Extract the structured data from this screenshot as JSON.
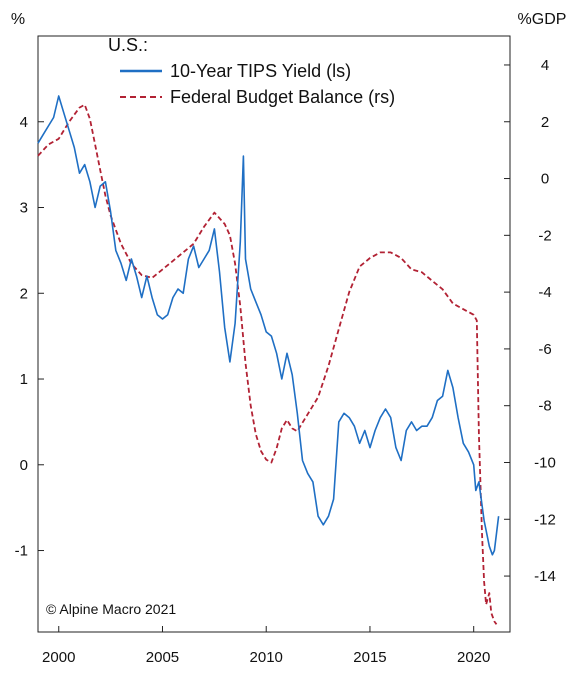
{
  "chart_data": {
    "type": "line",
    "title": "",
    "left_axis_unit": "%",
    "right_axis_unit": "%GDP",
    "legend": {
      "heading": "U.S.:",
      "placement": "top-left"
    },
    "credit": "© Alpine Macro 2021",
    "x_axis": {
      "range": [
        1999.0,
        2021.75
      ],
      "ticks": [
        2000,
        2005,
        2010,
        2015,
        2020
      ],
      "tick_labels": [
        "2000",
        "2005",
        "2010",
        "2015",
        "2020"
      ]
    },
    "left_axis": {
      "range": [
        -1.95,
        5.0
      ],
      "ticks": [
        -1,
        0,
        1,
        2,
        3,
        4
      ],
      "tick_labels": [
        "-1",
        "0",
        "1",
        "2",
        "3",
        "4"
      ]
    },
    "right_axis": {
      "range": [
        -15.97,
        5.02
      ],
      "ticks": [
        -14,
        -12,
        -10,
        -8,
        -6,
        -4,
        -2,
        0,
        2,
        4
      ],
      "tick_labels": [
        "-14",
        "-12",
        "-10",
        "-8",
        "-6",
        "-4",
        "-2",
        "0",
        "2",
        "4"
      ]
    },
    "grid": false,
    "series": [
      {
        "name": "10-Year TIPS Yield (ls)",
        "axis": "left",
        "color": "#1f6fc4",
        "style": "solid",
        "points": [
          [
            1999.0,
            3.75
          ],
          [
            1999.25,
            3.85
          ],
          [
            1999.5,
            3.95
          ],
          [
            1999.75,
            4.05
          ],
          [
            2000.0,
            4.3
          ],
          [
            2000.25,
            4.1
          ],
          [
            2000.5,
            3.9
          ],
          [
            2000.75,
            3.7
          ],
          [
            2001.0,
            3.4
          ],
          [
            2001.25,
            3.5
          ],
          [
            2001.5,
            3.3
          ],
          [
            2001.75,
            3.0
          ],
          [
            2002.0,
            3.25
          ],
          [
            2002.25,
            3.3
          ],
          [
            2002.5,
            2.95
          ],
          [
            2002.75,
            2.5
          ],
          [
            2003.0,
            2.35
          ],
          [
            2003.25,
            2.15
          ],
          [
            2003.5,
            2.4
          ],
          [
            2003.75,
            2.2
          ],
          [
            2004.0,
            1.95
          ],
          [
            2004.25,
            2.2
          ],
          [
            2004.5,
            1.95
          ],
          [
            2004.75,
            1.75
          ],
          [
            2005.0,
            1.7
          ],
          [
            2005.25,
            1.75
          ],
          [
            2005.5,
            1.95
          ],
          [
            2005.75,
            2.05
          ],
          [
            2006.0,
            2.0
          ],
          [
            2006.25,
            2.4
          ],
          [
            2006.5,
            2.55
          ],
          [
            2006.75,
            2.3
          ],
          [
            2007.0,
            2.4
          ],
          [
            2007.25,
            2.5
          ],
          [
            2007.5,
            2.75
          ],
          [
            2007.75,
            2.25
          ],
          [
            2008.0,
            1.6
          ],
          [
            2008.25,
            1.2
          ],
          [
            2008.5,
            1.65
          ],
          [
            2008.75,
            2.6
          ],
          [
            2008.9,
            3.6
          ],
          [
            2009.0,
            2.4
          ],
          [
            2009.25,
            2.05
          ],
          [
            2009.5,
            1.9
          ],
          [
            2009.75,
            1.75
          ],
          [
            2010.0,
            1.55
          ],
          [
            2010.25,
            1.5
          ],
          [
            2010.5,
            1.3
          ],
          [
            2010.75,
            1.0
          ],
          [
            2011.0,
            1.3
          ],
          [
            2011.25,
            1.05
          ],
          [
            2011.5,
            0.6
          ],
          [
            2011.75,
            0.05
          ],
          [
            2012.0,
            -0.1
          ],
          [
            2012.25,
            -0.2
          ],
          [
            2012.5,
            -0.6
          ],
          [
            2012.75,
            -0.7
          ],
          [
            2013.0,
            -0.6
          ],
          [
            2013.25,
            -0.4
          ],
          [
            2013.5,
            0.5
          ],
          [
            2013.75,
            0.6
          ],
          [
            2014.0,
            0.55
          ],
          [
            2014.25,
            0.45
          ],
          [
            2014.5,
            0.25
          ],
          [
            2014.75,
            0.4
          ],
          [
            2015.0,
            0.2
          ],
          [
            2015.25,
            0.4
          ],
          [
            2015.5,
            0.55
          ],
          [
            2015.75,
            0.65
          ],
          [
            2016.0,
            0.55
          ],
          [
            2016.25,
            0.2
          ],
          [
            2016.5,
            0.05
          ],
          [
            2016.75,
            0.4
          ],
          [
            2017.0,
            0.5
          ],
          [
            2017.25,
            0.4
          ],
          [
            2017.5,
            0.45
          ],
          [
            2017.75,
            0.45
          ],
          [
            2018.0,
            0.55
          ],
          [
            2018.25,
            0.75
          ],
          [
            2018.5,
            0.8
          ],
          [
            2018.75,
            1.1
          ],
          [
            2019.0,
            0.9
          ],
          [
            2019.25,
            0.55
          ],
          [
            2019.5,
            0.25
          ],
          [
            2019.75,
            0.15
          ],
          [
            2020.0,
            0.0
          ],
          [
            2020.1,
            -0.3
          ],
          [
            2020.25,
            -0.2
          ],
          [
            2020.5,
            -0.65
          ],
          [
            2020.75,
            -0.95
          ],
          [
            2020.9,
            -1.05
          ],
          [
            2021.0,
            -1.0
          ],
          [
            2021.1,
            -0.8
          ],
          [
            2021.2,
            -0.6
          ]
        ]
      },
      {
        "name": "Federal Budget Balance (rs)",
        "axis": "right",
        "color": "#b22234",
        "style": "dashed",
        "points": [
          [
            1999.0,
            0.8
          ],
          [
            1999.5,
            1.2
          ],
          [
            2000.0,
            1.4
          ],
          [
            2000.5,
            2.0
          ],
          [
            2001.0,
            2.5
          ],
          [
            2001.25,
            2.6
          ],
          [
            2001.5,
            2.1
          ],
          [
            2001.75,
            1.2
          ],
          [
            2002.0,
            0.3
          ],
          [
            2002.25,
            -0.6
          ],
          [
            2002.5,
            -1.3
          ],
          [
            2002.75,
            -1.8
          ],
          [
            2003.0,
            -2.3
          ],
          [
            2003.5,
            -3.0
          ],
          [
            2004.0,
            -3.4
          ],
          [
            2004.5,
            -3.5
          ],
          [
            2005.0,
            -3.2
          ],
          [
            2005.5,
            -2.9
          ],
          [
            2006.0,
            -2.6
          ],
          [
            2006.5,
            -2.3
          ],
          [
            2007.0,
            -1.7
          ],
          [
            2007.5,
            -1.2
          ],
          [
            2008.0,
            -1.6
          ],
          [
            2008.25,
            -2.0
          ],
          [
            2008.5,
            -3.0
          ],
          [
            2008.75,
            -4.5
          ],
          [
            2009.0,
            -6.5
          ],
          [
            2009.25,
            -8.0
          ],
          [
            2009.5,
            -9.0
          ],
          [
            2009.75,
            -9.6
          ],
          [
            2010.0,
            -9.9
          ],
          [
            2010.25,
            -10.0
          ],
          [
            2010.5,
            -9.5
          ],
          [
            2010.75,
            -8.8
          ],
          [
            2011.0,
            -8.5
          ],
          [
            2011.25,
            -8.8
          ],
          [
            2011.5,
            -8.9
          ],
          [
            2011.75,
            -8.6
          ],
          [
            2012.0,
            -8.3
          ],
          [
            2012.5,
            -7.7
          ],
          [
            2013.0,
            -6.6
          ],
          [
            2013.5,
            -5.3
          ],
          [
            2014.0,
            -4.0
          ],
          [
            2014.5,
            -3.1
          ],
          [
            2015.0,
            -2.8
          ],
          [
            2015.5,
            -2.6
          ],
          [
            2016.0,
            -2.6
          ],
          [
            2016.5,
            -2.8
          ],
          [
            2017.0,
            -3.2
          ],
          [
            2017.5,
            -3.3
          ],
          [
            2018.0,
            -3.6
          ],
          [
            2018.5,
            -3.9
          ],
          [
            2019.0,
            -4.4
          ],
          [
            2019.5,
            -4.6
          ],
          [
            2020.0,
            -4.8
          ],
          [
            2020.15,
            -5.0
          ],
          [
            2020.25,
            -9.0
          ],
          [
            2020.4,
            -12.5
          ],
          [
            2020.5,
            -14.2
          ],
          [
            2020.6,
            -15.0
          ],
          [
            2020.75,
            -14.6
          ],
          [
            2020.85,
            -15.3
          ],
          [
            2021.0,
            -15.6
          ],
          [
            2021.1,
            -15.7
          ]
        ]
      }
    ]
  }
}
